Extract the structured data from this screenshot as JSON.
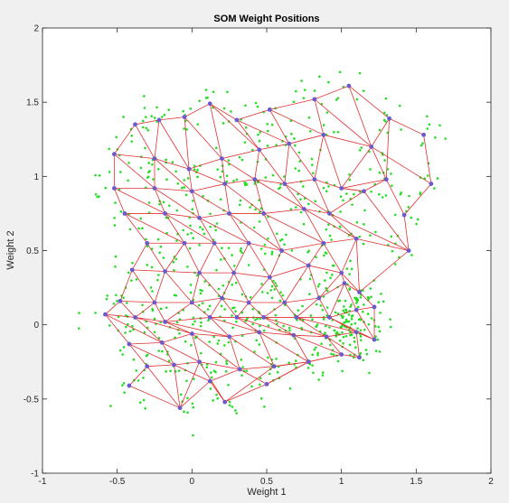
{
  "chart_data": {
    "type": "scatter",
    "title": "SOM Weight Positions",
    "xlabel": "Weight 1",
    "ylabel": "Weight 2",
    "xlim": [
      -1,
      2
    ],
    "ylim": [
      -1,
      2
    ],
    "xticks": [
      -1,
      -0.5,
      0,
      0.5,
      1,
      1.5,
      2
    ],
    "xtick_labels": [
      "-1",
      "-0.5",
      "0",
      "0.5",
      "1",
      "1.5",
      "2"
    ],
    "yticks": [
      -1,
      -0.5,
      0,
      0.5,
      1,
      1.5,
      2
    ],
    "ytick_labels": [
      "-1",
      "-0.5",
      "0",
      "0.5",
      "1",
      "1.5",
      "2"
    ],
    "grid": false,
    "colors": {
      "samples": "#22dd22",
      "neurons": "#6a5acd",
      "links": "#e03030",
      "axes_background": "#ffffff",
      "figure_background": "#f0f0f0"
    },
    "neurons": [
      [
        -0.38,
        1.35
      ],
      [
        -0.22,
        1.38
      ],
      [
        -0.05,
        1.4
      ],
      [
        0.12,
        1.49
      ],
      [
        0.3,
        1.38
      ],
      [
        0.52,
        1.45
      ],
      [
        0.82,
        1.52
      ],
      [
        1.05,
        1.61
      ],
      [
        1.32,
        1.39
      ],
      [
        1.55,
        1.28
      ],
      [
        -0.52,
        1.15
      ],
      [
        -0.25,
        1.12
      ],
      [
        -0.02,
        1.05
      ],
      [
        0.2,
        1.12
      ],
      [
        0.45,
        1.18
      ],
      [
        0.65,
        1.22
      ],
      [
        0.88,
        1.28
      ],
      [
        1.2,
        1.2
      ],
      [
        1.6,
        0.95
      ],
      [
        -0.52,
        0.92
      ],
      [
        -0.25,
        0.92
      ],
      [
        0.0,
        0.9
      ],
      [
        0.22,
        0.95
      ],
      [
        0.42,
        0.98
      ],
      [
        0.62,
        0.95
      ],
      [
        0.82,
        0.98
      ],
      [
        1.0,
        0.92
      ],
      [
        1.3,
        0.98
      ],
      [
        1.42,
        0.74
      ],
      [
        -0.45,
        0.75
      ],
      [
        -0.18,
        0.75
      ],
      [
        0.05,
        0.72
      ],
      [
        0.25,
        0.75
      ],
      [
        0.48,
        0.75
      ],
      [
        0.75,
        0.78
      ],
      [
        1.15,
        0.9
      ],
      [
        0.92,
        0.75
      ],
      [
        -0.3,
        0.55
      ],
      [
        -0.05,
        0.55
      ],
      [
        0.15,
        0.55
      ],
      [
        0.38,
        0.55
      ],
      [
        0.6,
        0.5
      ],
      [
        0.88,
        0.55
      ],
      [
        1.1,
        0.58
      ],
      [
        1.45,
        0.5
      ],
      [
        -0.4,
        0.37
      ],
      [
        -0.18,
        0.36
      ],
      [
        0.05,
        0.35
      ],
      [
        0.28,
        0.35
      ],
      [
        0.52,
        0.32
      ],
      [
        0.78,
        0.4
      ],
      [
        1.0,
        0.35
      ],
      [
        1.12,
        0.22
      ],
      [
        -0.48,
        0.16
      ],
      [
        -0.25,
        0.15
      ],
      [
        0.0,
        0.15
      ],
      [
        0.2,
        0.18
      ],
      [
        0.38,
        0.15
      ],
      [
        0.62,
        0.15
      ],
      [
        0.85,
        0.18
      ],
      [
        1.02,
        0.28
      ],
      [
        -0.58,
        0.07
      ],
      [
        -0.38,
        0.05
      ],
      [
        -0.18,
        0.02
      ],
      [
        0.12,
        0.05
      ],
      [
        0.3,
        0.05
      ],
      [
        0.48,
        0.05
      ],
      [
        0.7,
        0.05
      ],
      [
        0.92,
        0.05
      ],
      [
        1.1,
        0.1
      ],
      [
        1.22,
        0.12
      ],
      [
        -0.42,
        -0.13
      ],
      [
        -0.2,
        -0.12
      ],
      [
        0.0,
        -0.06
      ],
      [
        0.25,
        -0.08
      ],
      [
        0.45,
        -0.05
      ],
      [
        0.68,
        -0.07
      ],
      [
        0.9,
        -0.08
      ],
      [
        1.1,
        -0.05
      ],
      [
        1.22,
        -0.1
      ],
      [
        -0.3,
        -0.28
      ],
      [
        -0.12,
        -0.27
      ],
      [
        0.05,
        -0.25
      ],
      [
        0.32,
        -0.3
      ],
      [
        0.55,
        -0.28
      ],
      [
        0.78,
        -0.25
      ],
      [
        1.0,
        -0.2
      ],
      [
        1.12,
        -0.22
      ],
      [
        -0.42,
        -0.41
      ],
      [
        -0.08,
        -0.56
      ],
      [
        0.12,
        -0.38
      ],
      [
        0.22,
        -0.52
      ],
      [
        0.5,
        -0.4
      ],
      [
        0.78,
        -0.25
      ]
    ],
    "links": [
      [
        0,
        1
      ],
      [
        1,
        2
      ],
      [
        2,
        3
      ],
      [
        3,
        4
      ],
      [
        4,
        5
      ],
      [
        5,
        6
      ],
      [
        6,
        7
      ],
      [
        7,
        8
      ],
      [
        8,
        9
      ],
      [
        10,
        11
      ],
      [
        11,
        12
      ],
      [
        12,
        13
      ],
      [
        13,
        14
      ],
      [
        14,
        15
      ],
      [
        15,
        16
      ],
      [
        16,
        17
      ],
      [
        17,
        18
      ],
      [
        19,
        20
      ],
      [
        20,
        21
      ],
      [
        21,
        22
      ],
      [
        22,
        23
      ],
      [
        23,
        24
      ],
      [
        24,
        25
      ],
      [
        25,
        26
      ],
      [
        26,
        27
      ],
      [
        27,
        28
      ],
      [
        29,
        30
      ],
      [
        30,
        31
      ],
      [
        31,
        32
      ],
      [
        32,
        33
      ],
      [
        33,
        34
      ],
      [
        34,
        36
      ],
      [
        36,
        35
      ],
      [
        37,
        38
      ],
      [
        38,
        39
      ],
      [
        39,
        40
      ],
      [
        40,
        41
      ],
      [
        41,
        42
      ],
      [
        42,
        43
      ],
      [
        43,
        44
      ],
      [
        45,
        46
      ],
      [
        46,
        47
      ],
      [
        47,
        48
      ],
      [
        48,
        49
      ],
      [
        49,
        50
      ],
      [
        50,
        51
      ],
      [
        51,
        52
      ],
      [
        53,
        54
      ],
      [
        54,
        55
      ],
      [
        55,
        56
      ],
      [
        56,
        57
      ],
      [
        57,
        58
      ],
      [
        58,
        59
      ],
      [
        59,
        60
      ],
      [
        61,
        62
      ],
      [
        62,
        63
      ],
      [
        63,
        64
      ],
      [
        64,
        65
      ],
      [
        65,
        66
      ],
      [
        66,
        67
      ],
      [
        67,
        68
      ],
      [
        68,
        69
      ],
      [
        69,
        70
      ],
      [
        71,
        72
      ],
      [
        72,
        73
      ],
      [
        73,
        74
      ],
      [
        74,
        75
      ],
      [
        75,
        76
      ],
      [
        76,
        77
      ],
      [
        77,
        78
      ],
      [
        78,
        79
      ],
      [
        80,
        81
      ],
      [
        81,
        82
      ],
      [
        82,
        83
      ],
      [
        83,
        84
      ],
      [
        84,
        85
      ],
      [
        85,
        86
      ],
      [
        86,
        87
      ],
      [
        88,
        89
      ],
      [
        89,
        90
      ],
      [
        90,
        91
      ],
      [
        91,
        92
      ],
      [
        92,
        93
      ],
      [
        0,
        10
      ],
      [
        10,
        19
      ],
      [
        19,
        29
      ],
      [
        29,
        37
      ],
      [
        37,
        45
      ],
      [
        45,
        53
      ],
      [
        53,
        61
      ],
      [
        61,
        71
      ],
      [
        71,
        80
      ],
      [
        80,
        88
      ],
      [
        1,
        11
      ],
      [
        11,
        20
      ],
      [
        20,
        30
      ],
      [
        30,
        38
      ],
      [
        38,
        46
      ],
      [
        46,
        54
      ],
      [
        54,
        62
      ],
      [
        62,
        72
      ],
      [
        72,
        81
      ],
      [
        81,
        89
      ],
      [
        2,
        12
      ],
      [
        12,
        21
      ],
      [
        21,
        31
      ],
      [
        31,
        39
      ],
      [
        39,
        47
      ],
      [
        47,
        55
      ],
      [
        55,
        63
      ],
      [
        63,
        73
      ],
      [
        73,
        82
      ],
      [
        82,
        89
      ],
      [
        3,
        13
      ],
      [
        13,
        22
      ],
      [
        22,
        32
      ],
      [
        32,
        40
      ],
      [
        40,
        48
      ],
      [
        48,
        56
      ],
      [
        56,
        64
      ],
      [
        64,
        74
      ],
      [
        74,
        83
      ],
      [
        83,
        90
      ],
      [
        4,
        14
      ],
      [
        14,
        23
      ],
      [
        23,
        33
      ],
      [
        33,
        41
      ],
      [
        41,
        49
      ],
      [
        49,
        57
      ],
      [
        57,
        65
      ],
      [
        65,
        75
      ],
      [
        75,
        84
      ],
      [
        84,
        91
      ],
      [
        5,
        15
      ],
      [
        15,
        24
      ],
      [
        24,
        34
      ],
      [
        34,
        42
      ],
      [
        42,
        50
      ],
      [
        50,
        58
      ],
      [
        58,
        66
      ],
      [
        66,
        76
      ],
      [
        76,
        85
      ],
      [
        85,
        92
      ],
      [
        6,
        16
      ],
      [
        16,
        25
      ],
      [
        25,
        36
      ],
      [
        36,
        43
      ],
      [
        43,
        51
      ],
      [
        51,
        59
      ],
      [
        59,
        67
      ],
      [
        67,
        77
      ],
      [
        77,
        86
      ],
      [
        86,
        93
      ],
      [
        7,
        17
      ],
      [
        17,
        26
      ],
      [
        26,
        35
      ],
      [
        35,
        44
      ],
      [
        44,
        52
      ],
      [
        52,
        60
      ],
      [
        60,
        68
      ],
      [
        68,
        78
      ],
      [
        78,
        87
      ],
      [
        8,
        27
      ],
      [
        9,
        18
      ],
      [
        18,
        28
      ],
      [
        28,
        44
      ],
      [
        52,
        70
      ],
      [
        70,
        79
      ],
      [
        69,
        79
      ],
      [
        0,
        11
      ],
      [
        1,
        12
      ],
      [
        2,
        13
      ],
      [
        3,
        14
      ],
      [
        4,
        15
      ],
      [
        5,
        16
      ],
      [
        6,
        17
      ],
      [
        8,
        17
      ],
      [
        10,
        20
      ],
      [
        11,
        21
      ],
      [
        12,
        22
      ],
      [
        13,
        23
      ],
      [
        14,
        24
      ],
      [
        15,
        25
      ],
      [
        16,
        26
      ],
      [
        17,
        27
      ],
      [
        19,
        30
      ],
      [
        20,
        31
      ],
      [
        21,
        32
      ],
      [
        22,
        33
      ],
      [
        23,
        34
      ],
      [
        24,
        36
      ],
      [
        26,
        35
      ],
      [
        27,
        35
      ],
      [
        29,
        38
      ],
      [
        30,
        39
      ],
      [
        31,
        40
      ],
      [
        32,
        41
      ],
      [
        33,
        42
      ],
      [
        34,
        43
      ],
      [
        36,
        44
      ],
      [
        37,
        46
      ],
      [
        38,
        47
      ],
      [
        39,
        48
      ],
      [
        40,
        49
      ],
      [
        41,
        50
      ],
      [
        42,
        51
      ],
      [
        43,
        52
      ],
      [
        45,
        54
      ],
      [
        46,
        55
      ],
      [
        47,
        56
      ],
      [
        48,
        57
      ],
      [
        49,
        58
      ],
      [
        50,
        59
      ],
      [
        51,
        60
      ],
      [
        53,
        62
      ],
      [
        54,
        63
      ],
      [
        55,
        64
      ],
      [
        56,
        65
      ],
      [
        57,
        66
      ],
      [
        58,
        67
      ],
      [
        59,
        68
      ],
      [
        60,
        69
      ],
      [
        61,
        72
      ],
      [
        62,
        73
      ],
      [
        63,
        74
      ],
      [
        64,
        75
      ],
      [
        65,
        76
      ],
      [
        66,
        77
      ],
      [
        67,
        78
      ],
      [
        68,
        79
      ],
      [
        71,
        81
      ],
      [
        72,
        82
      ],
      [
        73,
        83
      ],
      [
        74,
        84
      ],
      [
        75,
        85
      ],
      [
        76,
        86
      ],
      [
        77,
        87
      ],
      [
        80,
        89
      ],
      [
        81,
        90
      ],
      [
        82,
        91
      ],
      [
        83,
        92
      ],
      [
        84,
        93
      ]
    ]
  }
}
